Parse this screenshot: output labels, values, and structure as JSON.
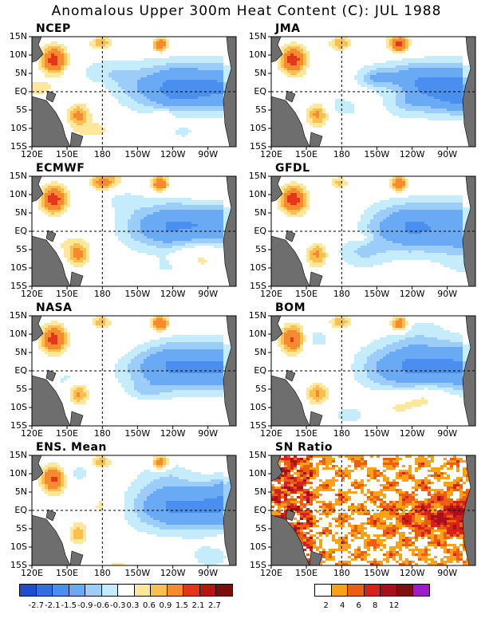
{
  "title": "Anomalous Upper 300m Heat Content (C): JUL 1988",
  "chart_data": {
    "type": "heatmap",
    "panels": [
      {
        "name": "NCEP"
      },
      {
        "name": "JMA"
      },
      {
        "name": "ECMWF"
      },
      {
        "name": "GFDL"
      },
      {
        "name": "NASA"
      },
      {
        "name": "BOM"
      },
      {
        "name": "ENS. Mean"
      },
      {
        "name": "SN Ratio"
      }
    ],
    "y_ticks": [
      "15N",
      "10N",
      "5N",
      "EQ",
      "5S",
      "10S",
      "15S"
    ],
    "x_ticks": [
      "120E",
      "150E",
      "180",
      "150W",
      "120W",
      "90W"
    ],
    "anomaly_colorbar": {
      "labels": [
        "-2.7",
        "-2.1",
        "-1.5",
        "-0.9",
        "-0.6",
        "-0.3",
        "0.3",
        "0.6",
        "0.9",
        "1.5",
        "2.1",
        "2.7"
      ],
      "colors": [
        "#1b4fd0",
        "#2f6fe0",
        "#4a8ff0",
        "#6aaaf4",
        "#9ccdf8",
        "#c4ecfa",
        "#ffffff",
        "#fde79a",
        "#f9c050",
        "#f58a2e",
        "#e4361a",
        "#b7150f",
        "#7b0d0a"
      ]
    },
    "sn_colorbar": {
      "labels": [
        "2",
        "4",
        "6",
        "8",
        "12"
      ],
      "colors": [
        "#ffffff",
        "#f9a219",
        "#ec5f12",
        "#d6221a",
        "#a8101e",
        "#7e1010",
        "#9d1ec9"
      ]
    }
  }
}
